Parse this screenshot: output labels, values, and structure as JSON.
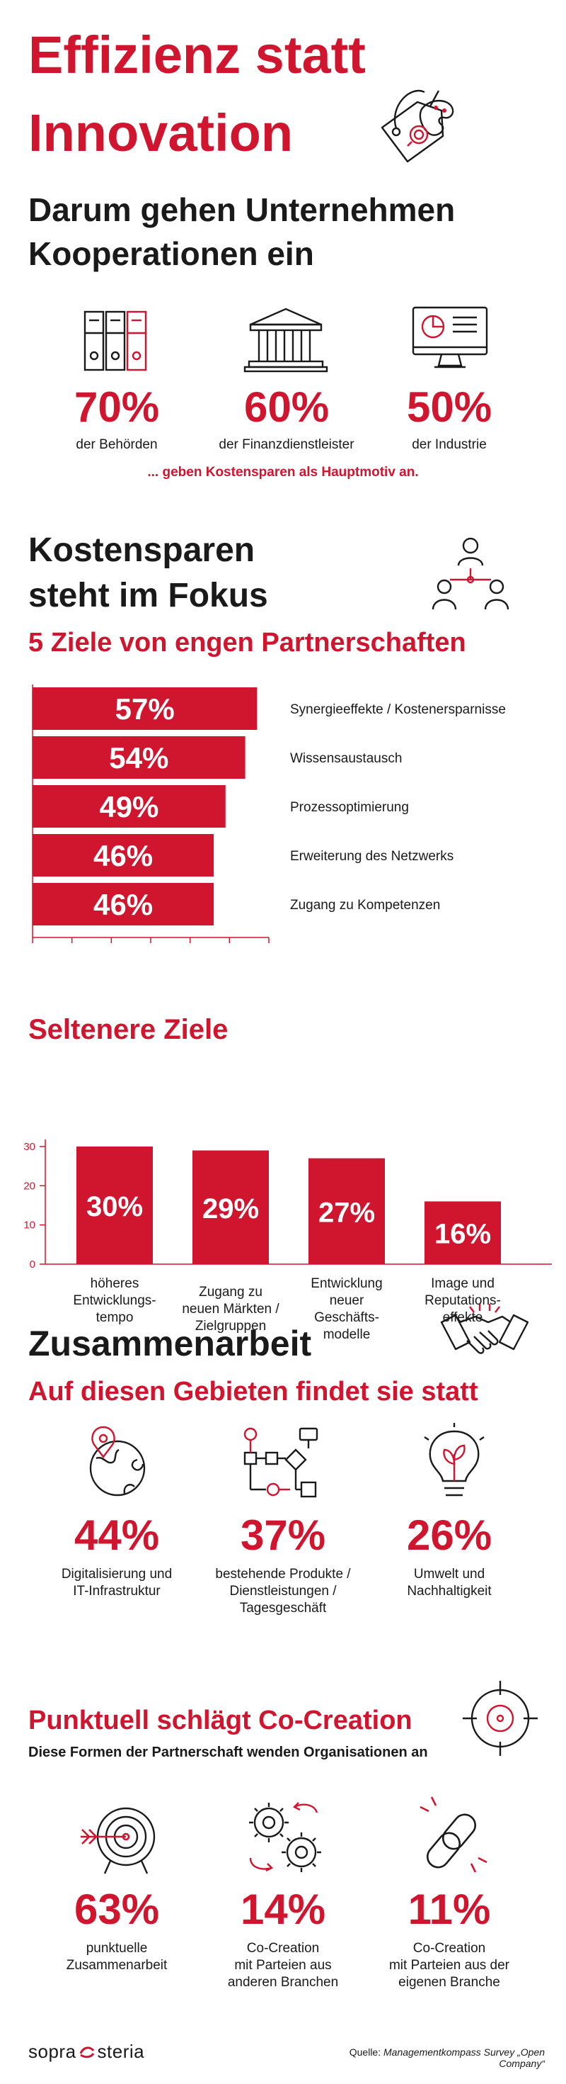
{
  "header": {
    "title_line1": "Effizienz statt",
    "title_line2": "Innovation",
    "subtitle_line1": "Darum gehen Unternehmen",
    "subtitle_line2": "Kooperationen ein"
  },
  "motives": {
    "items": [
      {
        "value": "70%",
        "label": "der Behörden",
        "icon": "folders-icon"
      },
      {
        "value": "60%",
        "label": "der Finanzdienstleister",
        "icon": "bank-icon"
      },
      {
        "value": "50%",
        "label": "der Industrie",
        "icon": "monitor-chart-icon"
      }
    ],
    "note": "... geben Kostensparen als Hauptmotiv an."
  },
  "focus": {
    "heading_line1": "Kostensparen",
    "heading_line2": "steht im Fokus",
    "subheading": "5 Ziele von engen Partnerschaften"
  },
  "rare": {
    "heading": "Seltenere Ziele"
  },
  "collab": {
    "heading": "Zusammenarbeit",
    "subheading": "Auf diesen Gebieten findet sie statt",
    "items": [
      {
        "value": "44%",
        "label_lines": [
          "Digitalisierung und",
          "IT-Infrastruktur"
        ],
        "icon": "globe-pin-icon"
      },
      {
        "value": "37%",
        "label_lines": [
          "bestehende Produkte /",
          "Dienstleistungen /",
          "Tagesgeschäft"
        ],
        "icon": "flowchart-icon"
      },
      {
        "value": "26%",
        "label_lines": [
          "Umwelt und",
          "Nachhaltigkeit"
        ],
        "icon": "lightbulb-leaf-icon"
      }
    ]
  },
  "cocreation": {
    "heading": "Punktuell schlägt Co-Creation",
    "subheading": "Diese Formen der Partnerschaft wenden Organisationen an",
    "items": [
      {
        "value": "63%",
        "label_lines": [
          "punktuelle",
          "Zusammenarbeit"
        ],
        "icon": "target-arrow-icon"
      },
      {
        "value": "14%",
        "label_lines": [
          "Co-Creation",
          "mit Parteien aus",
          "anderen Branchen"
        ],
        "icon": "gears-icon"
      },
      {
        "value": "11%",
        "label_lines": [
          "Co-Creation",
          "mit Parteien aus der",
          "eigenen Branche"
        ],
        "icon": "chain-link-icon"
      }
    ]
  },
  "footer": {
    "logo_left": "sopra",
    "logo_right": "steria",
    "source_prefix": "Quelle: ",
    "source_title": "Managementkompass Survey „Open Company“"
  },
  "chart_data": [
    {
      "type": "bar",
      "orientation": "horizontal",
      "categories": [
        "Synergieeffekte / Kostenersparnisse",
        "Wissensaustausch",
        "Prozessoptimierung",
        "Erweiterung des Netzwerks",
        "Zugang zu Kompetenzen"
      ],
      "values": [
        57,
        54,
        49,
        46,
        46
      ],
      "value_labels": [
        "57%",
        "54%",
        "49%",
        "46%",
        "46%"
      ],
      "xlim": [
        0,
        60
      ],
      "xticks": [
        "0",
        "10",
        "20",
        "30",
        "40",
        "50",
        "60"
      ],
      "color": "#d0152f"
    },
    {
      "type": "bar",
      "orientation": "vertical",
      "categories": [
        [
          "höheres",
          "Entwicklungs-",
          "tempo"
        ],
        [
          "Zugang zu",
          "neuen Märkten /",
          "Zielgruppen"
        ],
        [
          "Entwicklung",
          "neuer",
          "Geschäfts-",
          "modelle"
        ],
        [
          "Image und",
          "Reputations-",
          "effekte"
        ]
      ],
      "values": [
        30,
        29,
        27,
        16
      ],
      "value_labels": [
        "30%",
        "29%",
        "27%",
        "16%"
      ],
      "ylim": [
        0,
        30
      ],
      "yticks": [
        "0",
        "10",
        "20",
        "30"
      ],
      "color": "#d0152f"
    }
  ]
}
